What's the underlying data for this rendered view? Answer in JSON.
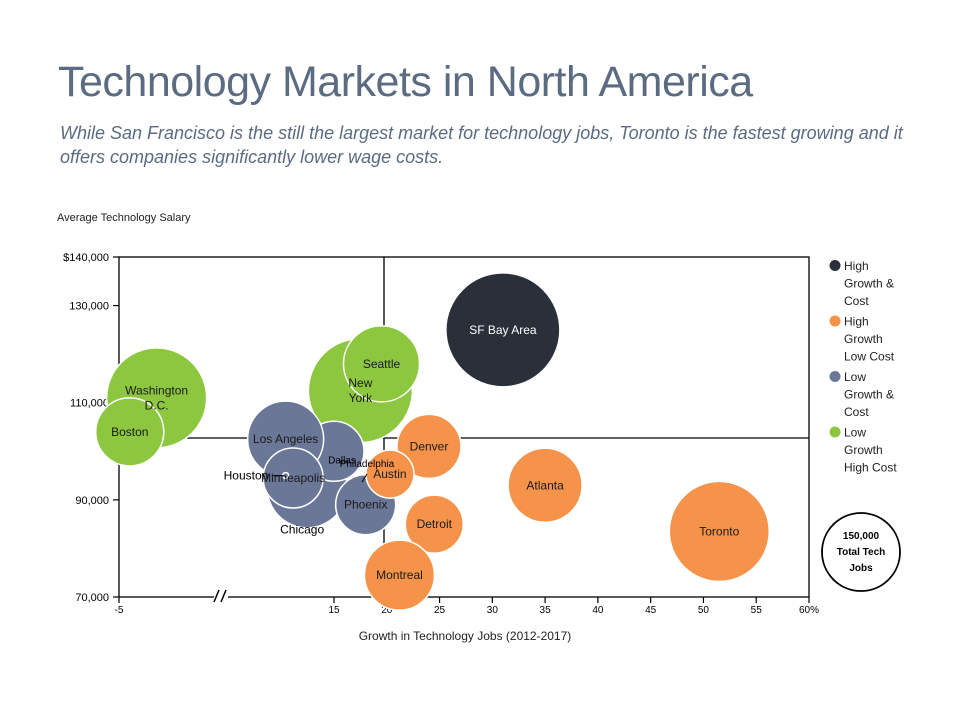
{
  "title": "Technology Markets in North America",
  "subtitle": "While San Francisco is the still the largest market for technology jobs, Toronto is the fastest growing and it offers companies significantly lower wage costs.",
  "colors": {
    "high_growth_cost": "#2a2f3a",
    "high_growth_low_cost": "#f5934a",
    "low_growth_cost": "#6a7797",
    "low_growth_high_cost": "#8dc63f"
  },
  "chart_data": {
    "type": "scatter",
    "title": "Technology Markets in North America",
    "xlabel": "Growth in Technology Jobs (2012-2017)",
    "ylabel": "Average Technology Salary",
    "xlim": [
      -5,
      60
    ],
    "ylim": [
      70000,
      140000
    ],
    "x_axis_break": true,
    "x_ticks": [
      "-5",
      "15",
      "20",
      "25",
      "30",
      "35",
      "40",
      "45",
      "50",
      "55",
      "60%"
    ],
    "y_ticks": [
      "70,000",
      "90,000",
      "110,000",
      "130,000",
      "$140,000"
    ],
    "quadrant_lines": {
      "x": 20,
      "y": 102000
    },
    "size_reference": {
      "value": 150000,
      "label": "150,000 Total Tech Jobs"
    },
    "series": [
      {
        "name": "High Growth & Cost",
        "color": "#2a2f3a",
        "points": [
          {
            "label": "SF Bay Area",
            "x": 31,
            "y": 125000
          }
        ]
      },
      {
        "name": "High Growth Low Cost",
        "color": "#f5934a",
        "points": [
          {
            "label": "Toronto",
            "x": 51.5,
            "y": 83500
          },
          {
            "label": "Atlanta",
            "x": 35,
            "y": 93000
          },
          {
            "label": "Denver",
            "x": 24,
            "y": 101000
          },
          {
            "label": "Detroit",
            "x": 24.5,
            "y": 85000
          },
          {
            "label": "Austin",
            "x": 20.3,
            "y": 95300
          },
          {
            "label": "Montreal",
            "x": 21.2,
            "y": 74500
          }
        ]
      },
      {
        "name": "Low Growth & Cost",
        "color": "#6a7797",
        "points": [
          {
            "label": "Los Angeles",
            "x": 10.5,
            "y": 102500
          },
          {
            "label": "Dallas",
            "x": 15,
            "y": 100000
          },
          {
            "label": "Phoenix",
            "x": 18,
            "y": 89000
          },
          {
            "label": "Philadelphia",
            "x": 18.5,
            "y": 95500
          },
          {
            "label": "Houston",
            "x": 10.5,
            "y": 95000
          },
          {
            "label": "Chicago",
            "x": 12.5,
            "y": 92500
          },
          {
            "label": "Minneapolis",
            "x": 11.2,
            "y": 94500
          }
        ]
      },
      {
        "name": "Low Growth High Cost",
        "color": "#8dc63f",
        "points": [
          {
            "label": "New York",
            "x": 17.5,
            "y": 112500
          },
          {
            "label": "Seattle",
            "x": 19.5,
            "y": 118000
          },
          {
            "label": "Washington D.C.",
            "x": -1.5,
            "y": 111000
          },
          {
            "label": "Boston",
            "x": -4,
            "y": 104000
          }
        ]
      }
    ],
    "legend": [
      {
        "label": "High Growth & Cost",
        "color": "#2a2f3a"
      },
      {
        "label": "High Growth Low Cost",
        "color": "#f5934a"
      },
      {
        "label": "Low Growth & Cost",
        "color": "#6a7797"
      },
      {
        "label": "Low Growth High Cost",
        "color": "#8dc63f"
      }
    ],
    "legend_position": "right"
  }
}
